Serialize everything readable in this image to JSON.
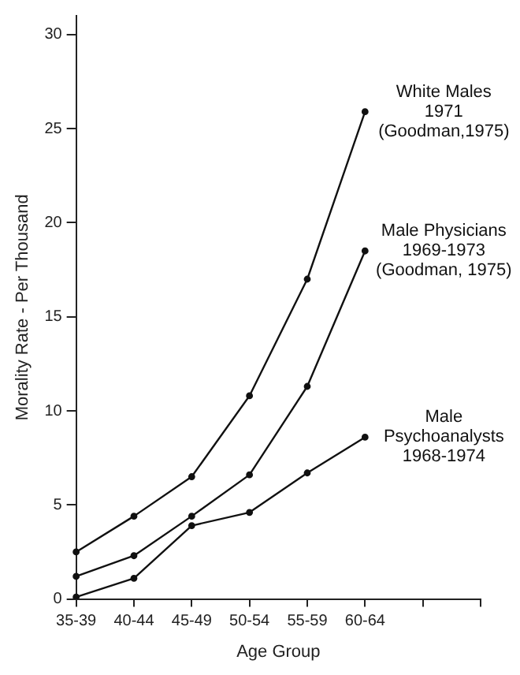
{
  "chart_data": {
    "type": "line",
    "xlabel": "Age Group",
    "ylabel": "Morality Rate - Per Thousand",
    "categories": [
      "35-39",
      "40-44",
      "45-49",
      "50-54",
      "55-59",
      "60-64",
      null,
      null
    ],
    "series": [
      {
        "name": "White Males\n1971\n(Goodman,1975)",
        "color": "#111111",
        "values": [
          2.5,
          4.4,
          6.5,
          10.8,
          17.0,
          25.9,
          null,
          null
        ]
      },
      {
        "name": "Male Physicians\n1969-1973\n(Goodman, 1975)",
        "color": "#111111",
        "values": [
          1.2,
          2.3,
          4.4,
          6.6,
          11.3,
          18.5,
          null,
          null
        ]
      },
      {
        "name": "Male\nPsychoanalysts\n1968-1974",
        "color": "#111111",
        "values": [
          0.1,
          1.1,
          3.9,
          4.6,
          6.7,
          8.6,
          null,
          null
        ]
      }
    ],
    "ylim": [
      0,
      31
    ],
    "yticks": [
      0,
      5,
      10,
      15,
      20,
      25,
      30
    ],
    "grid": false,
    "legend": false,
    "marker": "circle",
    "line_style": "solid"
  }
}
